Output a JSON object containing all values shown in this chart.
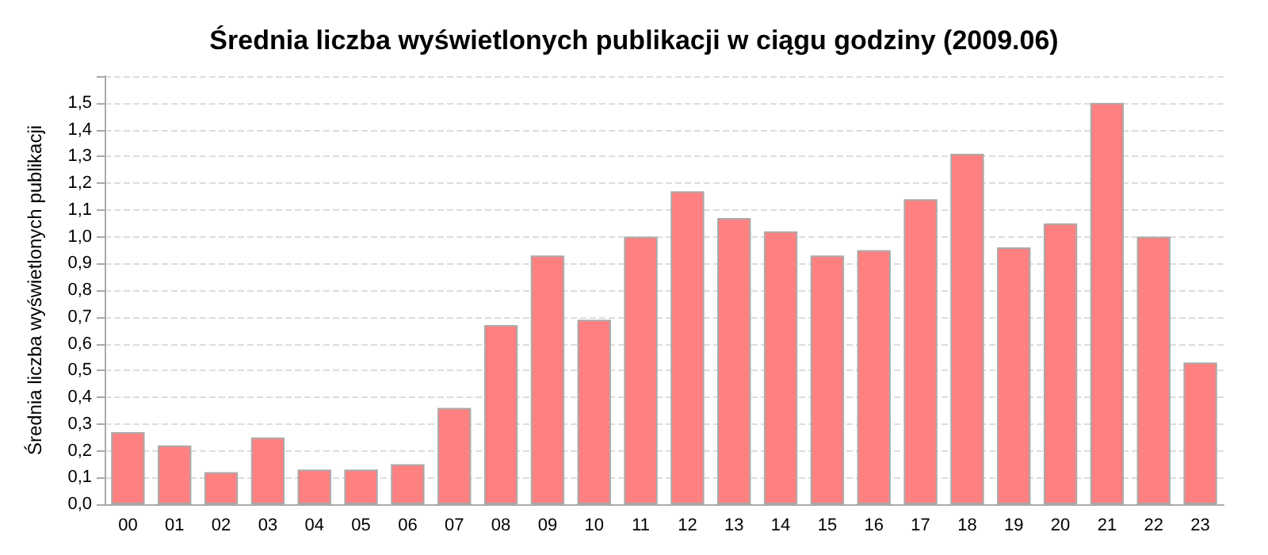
{
  "chart_data": {
    "type": "bar",
    "title": "Średnia liczba wyświetlonych publikacji w ciągu godziny (2009.06)",
    "ylabel": "Średnia liczba wyświetlonych publikacji",
    "categories": [
      "00",
      "01",
      "02",
      "03",
      "04",
      "05",
      "06",
      "07",
      "08",
      "09",
      "10",
      "11",
      "12",
      "13",
      "14",
      "15",
      "16",
      "17",
      "18",
      "19",
      "20",
      "21",
      "22",
      "23"
    ],
    "values": [
      0.27,
      0.22,
      0.12,
      0.25,
      0.13,
      0.13,
      0.15,
      0.36,
      0.67,
      0.93,
      0.69,
      1.0,
      1.17,
      1.07,
      1.02,
      0.93,
      0.95,
      1.14,
      1.31,
      0.96,
      1.05,
      1.5,
      1.0,
      0.53
    ],
    "color": "#ff8080",
    "ylim": [
      0,
      1.6
    ],
    "yticks": [
      {
        "value": 0,
        "label": "0,0"
      },
      {
        "value": 0.1,
        "label": "0,1"
      },
      {
        "value": 0.2,
        "label": "0,2"
      },
      {
        "value": 0.3,
        "label": "0,3"
      },
      {
        "value": 0.4,
        "label": "0,4"
      },
      {
        "value": 0.5,
        "label": "0,5"
      },
      {
        "value": 0.6,
        "label": "0,6"
      },
      {
        "value": 0.7,
        "label": "0,7"
      },
      {
        "value": 0.8,
        "label": "0,8"
      },
      {
        "value": 0.9,
        "label": "0,9"
      },
      {
        "value": 1.0,
        "label": "1,0"
      },
      {
        "value": 1.1,
        "label": "1,1"
      },
      {
        "value": 1.2,
        "label": "1,2"
      },
      {
        "value": 1.3,
        "label": "1,3"
      },
      {
        "value": 1.4,
        "label": "1,4"
      },
      {
        "value": 1.5,
        "label": "1,5"
      },
      {
        "value": 1.6,
        "label": null
      }
    ],
    "grid": "y"
  }
}
